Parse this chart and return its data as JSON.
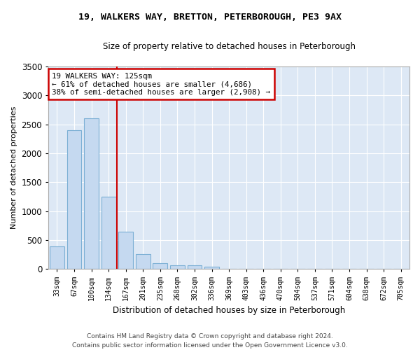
{
  "title": "19, WALKERS WAY, BRETTON, PETERBOROUGH, PE3 9AX",
  "subtitle": "Size of property relative to detached houses in Peterborough",
  "xlabel": "Distribution of detached houses by size in Peterborough",
  "ylabel": "Number of detached properties",
  "categories": [
    "33sqm",
    "67sqm",
    "100sqm",
    "134sqm",
    "167sqm",
    "201sqm",
    "235sqm",
    "268sqm",
    "302sqm",
    "336sqm",
    "369sqm",
    "403sqm",
    "436sqm",
    "470sqm",
    "504sqm",
    "537sqm",
    "571sqm",
    "604sqm",
    "638sqm",
    "672sqm",
    "705sqm"
  ],
  "values": [
    390,
    2400,
    2600,
    1250,
    640,
    260,
    100,
    60,
    60,
    40,
    0,
    0,
    0,
    0,
    0,
    0,
    0,
    0,
    0,
    0,
    0
  ],
  "bar_color": "#c5d9f0",
  "bar_edgecolor": "#7bafd4",
  "vline_x": 3.5,
  "vline_color": "#cc0000",
  "annotation_text": "19 WALKERS WAY: 125sqm\n← 61% of detached houses are smaller (4,686)\n38% of semi-detached houses are larger (2,908) →",
  "annotation_box_color": "#cc0000",
  "ylim": [
    0,
    3500
  ],
  "yticks": [
    0,
    500,
    1000,
    1500,
    2000,
    2500,
    3000,
    3500
  ],
  "background_color": "#dde8f5",
  "grid_color": "#ffffff",
  "fig_background": "#ffffff",
  "footer": "Contains HM Land Registry data © Crown copyright and database right 2024.\nContains public sector information licensed under the Open Government Licence v3.0."
}
